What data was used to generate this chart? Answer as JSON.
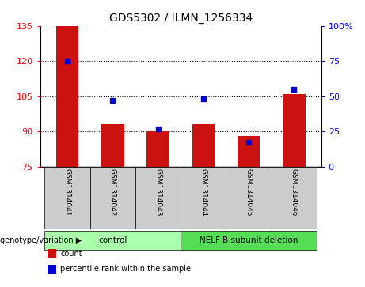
{
  "title": "GDS5302 / ILMN_1256334",
  "samples": [
    "GSM1314041",
    "GSM1314042",
    "GSM1314043",
    "GSM1314044",
    "GSM1314045",
    "GSM1314046"
  ],
  "counts": [
    135,
    93,
    90,
    93,
    88,
    106
  ],
  "percentiles": [
    75,
    47,
    27,
    48,
    17,
    55
  ],
  "ylim_left": [
    75,
    135
  ],
  "ylim_right": [
    0,
    100
  ],
  "yticks_left": [
    75,
    90,
    105,
    120,
    135
  ],
  "yticks_right": [
    0,
    25,
    50,
    75,
    100
  ],
  "bar_color": "#cc1111",
  "dot_color": "#0000cc",
  "bar_width": 0.5,
  "group_labels": [
    "control",
    "NELF B subunit deletion"
  ],
  "group_colors": [
    "#aaffaa",
    "#55dd55"
  ],
  "sample_box_color": "#cccccc",
  "legend_items": [
    "count",
    "percentile rank within the sample"
  ],
  "legend_colors": [
    "#cc1111",
    "#0000cc"
  ],
  "gridline_values": [
    90,
    105,
    120
  ],
  "pct_ytick_labels": [
    "0",
    "25",
    "50",
    "75",
    "100%"
  ]
}
